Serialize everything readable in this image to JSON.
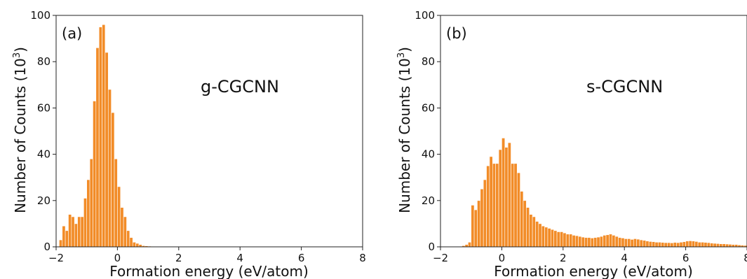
{
  "chart_data": [
    {
      "type": "bar",
      "panel_label": "(a)",
      "annotation": "g-CGCNN",
      "xlabel": "Formation energy (eV/atom)",
      "ylabel": "Number of Counts (10",
      "ylabel_sup": "3",
      "ylabel_close": ")",
      "xlim": [
        -2,
        8
      ],
      "ylim": [
        0,
        100
      ],
      "xticks": [
        -2,
        0,
        2,
        4,
        6,
        8
      ],
      "yticks": [
        0,
        20,
        40,
        60,
        80,
        100
      ],
      "xtick_labels": [
        "−2",
        "0",
        "2",
        "4",
        "6",
        "8"
      ],
      "ytick_labels": [
        "0",
        "20",
        "40",
        "60",
        "80",
        "100"
      ],
      "bar_color": "#F28C28",
      "bin_width": 0.1,
      "x": [
        -1.85,
        -1.75,
        -1.65,
        -1.55,
        -1.45,
        -1.35,
        -1.25,
        -1.15,
        -1.05,
        -0.95,
        -0.85,
        -0.75,
        -0.65,
        -0.55,
        -0.45,
        -0.35,
        -0.25,
        -0.15,
        -0.05,
        0.05,
        0.15,
        0.25,
        0.35,
        0.45,
        0.55,
        0.65,
        0.75,
        0.85,
        0.95,
        1.05,
        1.15
      ],
      "values": [
        3,
        9,
        7,
        14,
        13,
        10,
        13,
        13,
        21,
        29,
        38,
        63,
        86,
        95,
        96,
        84,
        68,
        58,
        38,
        26,
        17,
        13,
        7,
        4,
        2,
        1.5,
        1,
        0.5,
        0.4,
        0.3,
        0.2
      ]
    },
    {
      "type": "bar",
      "panel_label": "(b)",
      "annotation": "s-CGCNN",
      "xlabel": "Formation energy (eV/atom)",
      "ylabel": "Number of Counts (10",
      "ylabel_sup": "3",
      "ylabel_close": ")",
      "xlim": [
        -2,
        8
      ],
      "ylim": [
        0,
        100
      ],
      "xticks": [
        -2,
        0,
        2,
        4,
        6,
        8
      ],
      "yticks": [
        0,
        20,
        40,
        60,
        80,
        100
      ],
      "xtick_labels": [
        "−2",
        "0",
        "2",
        "4",
        "6",
        "8"
      ],
      "ytick_labels": [
        "0",
        "20",
        "40",
        "60",
        "80",
        "100"
      ],
      "bar_color": "#F28C28",
      "bin_width": 0.1,
      "x": [
        -1.25,
        -1.15,
        -1.05,
        -0.95,
        -0.85,
        -0.75,
        -0.65,
        -0.55,
        -0.45,
        -0.35,
        -0.25,
        -0.15,
        -0.05,
        0.05,
        0.15,
        0.25,
        0.35,
        0.45,
        0.55,
        0.65,
        0.75,
        0.85,
        0.95,
        1.05,
        1.15,
        1.25,
        1.35,
        1.45,
        1.55,
        1.65,
        1.75,
        1.85,
        1.95,
        2.05,
        2.15,
        2.25,
        2.35,
        2.45,
        2.55,
        2.65,
        2.75,
        2.85,
        2.95,
        3.05,
        3.15,
        3.25,
        3.35,
        3.45,
        3.55,
        3.65,
        3.75,
        3.85,
        3.95,
        4.05,
        4.15,
        4.25,
        4.35,
        4.45,
        4.55,
        4.65,
        4.75,
        4.85,
        4.95,
        5.05,
        5.15,
        5.25,
        5.35,
        5.45,
        5.55,
        5.65,
        5.75,
        5.85,
        5.95,
        6.05,
        6.15,
        6.25,
        6.35,
        6.45,
        6.55,
        6.65,
        6.75,
        6.85,
        6.95,
        7.05,
        7.15,
        7.25,
        7.35,
        7.45,
        7.55,
        7.65,
        7.75,
        7.85,
        7.95
      ],
      "values": [
        0.5,
        1,
        2,
        18,
        16,
        20,
        25,
        29,
        35,
        39,
        36,
        36,
        42,
        47,
        43,
        45,
        36,
        36,
        32,
        24,
        20,
        17,
        14,
        13,
        11,
        10,
        9,
        8.5,
        8,
        7.5,
        7,
        6.5,
        6.5,
        6,
        5.5,
        5.5,
        5,
        4.8,
        4.5,
        4.2,
        4,
        4,
        3.8,
        4,
        4.2,
        4.5,
        5,
        5.2,
        5.5,
        5,
        4.5,
        4,
        3.8,
        3.5,
        3.5,
        3.2,
        3.5,
        3.3,
        3,
        2.8,
        2.5,
        2.3,
        2.2,
        2,
        2,
        1.9,
        1.8,
        1.8,
        1.7,
        1.9,
        1.8,
        2,
        2.2,
        2.5,
        2.6,
        2.5,
        2.3,
        2,
        2,
        1.9,
        1.8,
        1.6,
        1.5,
        1.4,
        1.3,
        1.3,
        1.2,
        1.1,
        1,
        1,
        0.8,
        0.7,
        0.6
      ]
    }
  ]
}
